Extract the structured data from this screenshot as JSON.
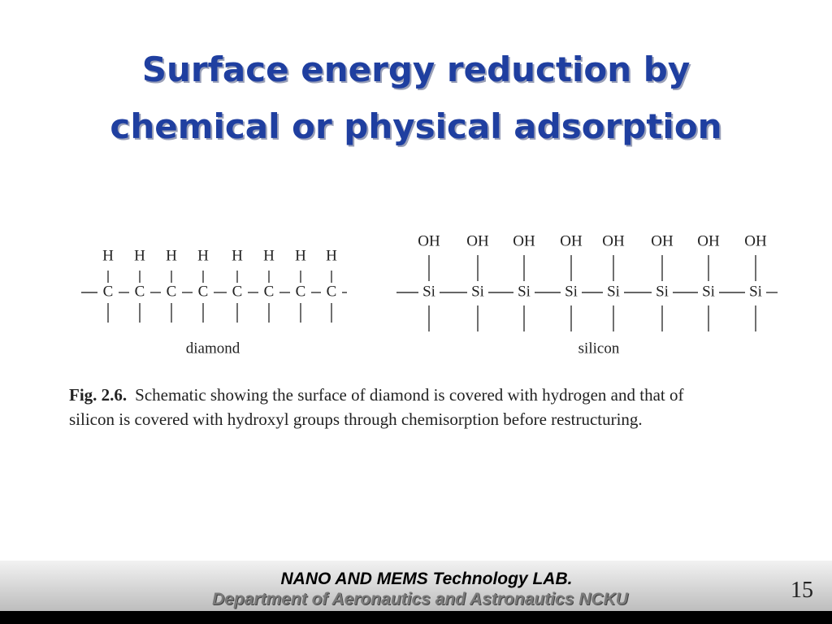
{
  "title": {
    "line1": "Surface energy reduction by",
    "line2": "chemical or physical adsorption"
  },
  "figure": {
    "diamond": {
      "top_atoms": [
        "H",
        "H",
        "H",
        "H",
        "H",
        "H",
        "H",
        "H"
      ],
      "chain_atoms": [
        "C",
        "C",
        "C",
        "C",
        "C",
        "C",
        "C",
        "C"
      ],
      "label": "diamond"
    },
    "silicon": {
      "top_atoms": [
        "OH",
        "OH",
        "OH",
        "OH",
        "OH",
        "OH",
        "OH",
        "OH"
      ],
      "chain_atoms": [
        "Si",
        "Si",
        "Si",
        "Si",
        "Si",
        "Si",
        "Si",
        "Si"
      ],
      "label": "silicon"
    },
    "caption": {
      "number": "Fig. 2.6.",
      "line1": "Schematic showing the surface of diamond is covered with hydrogen and that of",
      "line2": "silicon is covered with hydroxyl groups through chemisorption before restructuring."
    }
  },
  "footer": {
    "lab": "NANO AND MEMS Technology LAB.",
    "department": "Department of Aeronautics and Astronautics NCKU",
    "page": "15"
  }
}
